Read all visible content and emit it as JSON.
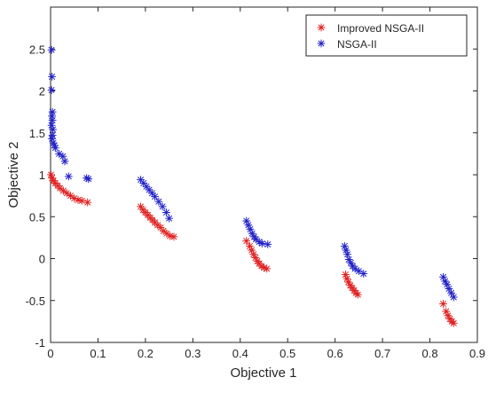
{
  "chart_data": {
    "type": "scatter",
    "title": "",
    "xlabel": "Objective 1",
    "ylabel": "Objective 2",
    "xlim": [
      0,
      0.9
    ],
    "ylim": [
      -1,
      3
    ],
    "xticks": [
      0,
      0.1,
      0.2,
      0.3,
      0.4,
      0.5,
      0.6,
      0.7,
      0.8,
      0.9
    ],
    "xtick_labels": [
      "0",
      "0.1",
      "0.2",
      "0.3",
      "0.4",
      "0.5",
      "0.6",
      "0.7",
      "0.8",
      "0.9"
    ],
    "yticks": [
      -1,
      -0.5,
      0,
      0.5,
      1,
      1.5,
      2,
      2.5
    ],
    "ytick_labels": [
      "-1",
      "-0.5",
      "0",
      "0.5",
      "1",
      "1.5",
      "2",
      "2.5"
    ],
    "grid": false,
    "legend_position": "top-right",
    "marker": "*",
    "series": [
      {
        "name": "Improved NSGA-II",
        "color": "#e02020",
        "points": [
          [
            0.001,
            1.0
          ],
          [
            0.003,
            0.96
          ],
          [
            0.006,
            0.93
          ],
          [
            0.01,
            0.9
          ],
          [
            0.015,
            0.87
          ],
          [
            0.02,
            0.84
          ],
          [
            0.027,
            0.81
          ],
          [
            0.034,
            0.78
          ],
          [
            0.042,
            0.75
          ],
          [
            0.05,
            0.72
          ],
          [
            0.058,
            0.7
          ],
          [
            0.066,
            0.69
          ],
          [
            0.078,
            0.67
          ],
          [
            0.19,
            0.62
          ],
          [
            0.195,
            0.58
          ],
          [
            0.2,
            0.55
          ],
          [
            0.205,
            0.52
          ],
          [
            0.21,
            0.49
          ],
          [
            0.215,
            0.46
          ],
          [
            0.22,
            0.43
          ],
          [
            0.226,
            0.4
          ],
          [
            0.232,
            0.37
          ],
          [
            0.238,
            0.33
          ],
          [
            0.245,
            0.3
          ],
          [
            0.252,
            0.27
          ],
          [
            0.26,
            0.26
          ],
          [
            0.413,
            0.21
          ],
          [
            0.42,
            0.15
          ],
          [
            0.424,
            0.1
          ],
          [
            0.428,
            0.05
          ],
          [
            0.432,
            0.01
          ],
          [
            0.436,
            -0.03
          ],
          [
            0.44,
            -0.06
          ],
          [
            0.445,
            -0.09
          ],
          [
            0.45,
            -0.11
          ],
          [
            0.456,
            -0.12
          ],
          [
            0.622,
            -0.19
          ],
          [
            0.625,
            -0.24
          ],
          [
            0.628,
            -0.28
          ],
          [
            0.632,
            -0.32
          ],
          [
            0.636,
            -0.35
          ],
          [
            0.64,
            -0.38
          ],
          [
            0.644,
            -0.41
          ],
          [
            0.648,
            -0.43
          ],
          [
            0.828,
            -0.54
          ],
          [
            0.834,
            -0.63
          ],
          [
            0.838,
            -0.68
          ],
          [
            0.842,
            -0.72
          ],
          [
            0.846,
            -0.75
          ],
          [
            0.85,
            -0.77
          ]
        ]
      },
      {
        "name": "NSGA-II",
        "color": "#2020c8",
        "points": [
          [
            0.002,
            2.49
          ],
          [
            0.003,
            2.17
          ],
          [
            0.002,
            2.01
          ],
          [
            0.004,
            1.75
          ],
          [
            0.003,
            1.7
          ],
          [
            0.004,
            1.65
          ],
          [
            0.002,
            1.59
          ],
          [
            0.005,
            1.54
          ],
          [
            0.004,
            1.47
          ],
          [
            0.003,
            1.43
          ],
          [
            0.006,
            1.38
          ],
          [
            0.008,
            1.35
          ],
          [
            0.01,
            1.32
          ],
          [
            0.018,
            1.25
          ],
          [
            0.026,
            1.22
          ],
          [
            0.03,
            1.16
          ],
          [
            0.038,
            0.98
          ],
          [
            0.076,
            0.96
          ],
          [
            0.08,
            0.95
          ],
          [
            0.19,
            0.94
          ],
          [
            0.196,
            0.9
          ],
          [
            0.202,
            0.86
          ],
          [
            0.208,
            0.82
          ],
          [
            0.214,
            0.78
          ],
          [
            0.22,
            0.74
          ],
          [
            0.228,
            0.68
          ],
          [
            0.236,
            0.62
          ],
          [
            0.244,
            0.55
          ],
          [
            0.25,
            0.48
          ],
          [
            0.413,
            0.45
          ],
          [
            0.417,
            0.4
          ],
          [
            0.421,
            0.35
          ],
          [
            0.425,
            0.3
          ],
          [
            0.429,
            0.26
          ],
          [
            0.433,
            0.23
          ],
          [
            0.44,
            0.2
          ],
          [
            0.446,
            0.18
          ],
          [
            0.458,
            0.17
          ],
          [
            0.62,
            0.15
          ],
          [
            0.623,
            0.1
          ],
          [
            0.626,
            0.05
          ],
          [
            0.629,
            -0.01
          ],
          [
            0.633,
            -0.05
          ],
          [
            0.637,
            -0.09
          ],
          [
            0.642,
            -0.12
          ],
          [
            0.65,
            -0.15
          ],
          [
            0.66,
            -0.18
          ],
          [
            0.828,
            -0.22
          ],
          [
            0.832,
            -0.27
          ],
          [
            0.836,
            -0.31
          ],
          [
            0.84,
            -0.36
          ],
          [
            0.845,
            -0.41
          ],
          [
            0.85,
            -0.46
          ]
        ]
      }
    ]
  }
}
